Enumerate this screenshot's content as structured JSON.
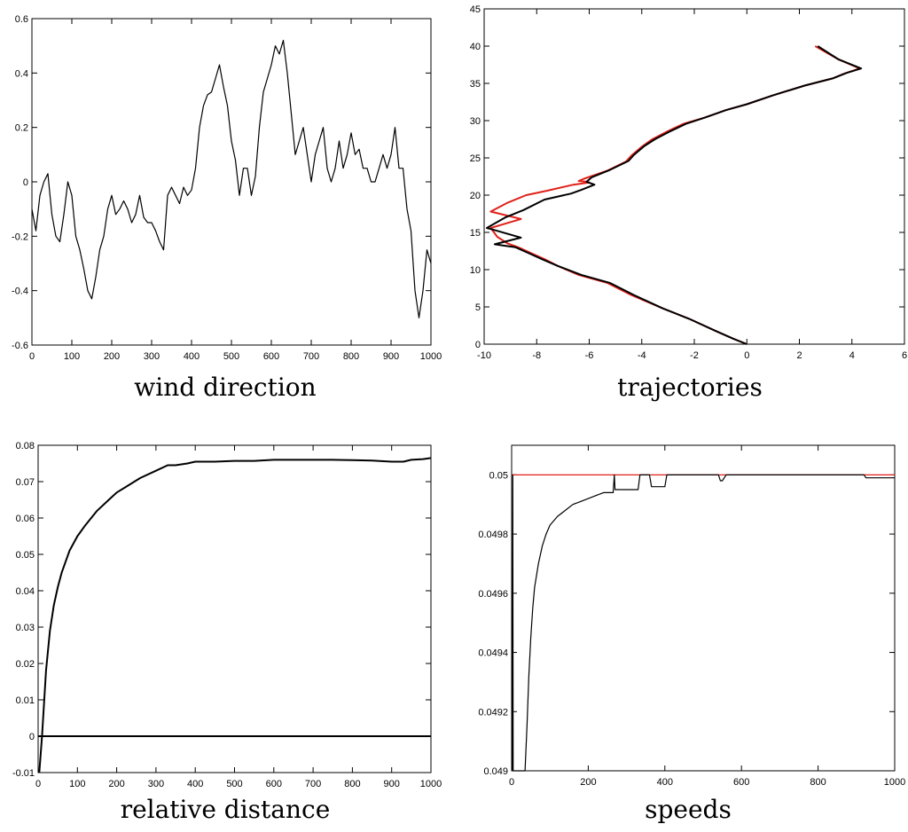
{
  "chart_data": [
    {
      "type": "line",
      "caption": "wind direction",
      "xlim": [
        0,
        1000
      ],
      "ylim": [
        -0.6,
        0.6
      ],
      "xticks": [
        "0",
        "100",
        "200",
        "300",
        "400",
        "500",
        "600",
        "700",
        "800",
        "900",
        "1000"
      ],
      "yticks": [
        "-0.6",
        "-0.4",
        "-0.2",
        "0",
        "0.2",
        "0.4",
        "0.6"
      ],
      "series": [
        {
          "color": "#000000",
          "x": [
            0,
            10,
            20,
            30,
            40,
            50,
            60,
            70,
            80,
            90,
            100,
            110,
            120,
            130,
            140,
            150,
            160,
            170,
            180,
            190,
            200,
            210,
            220,
            230,
            240,
            250,
            260,
            270,
            280,
            290,
            300,
            310,
            320,
            330,
            340,
            350,
            360,
            370,
            380,
            390,
            400,
            410,
            420,
            430,
            440,
            450,
            460,
            470,
            480,
            490,
            500,
            510,
            520,
            530,
            540,
            550,
            560,
            570,
            580,
            590,
            600,
            610,
            620,
            630,
            640,
            650,
            660,
            670,
            680,
            690,
            700,
            710,
            720,
            730,
            740,
            750,
            760,
            770,
            780,
            790,
            800,
            810,
            820,
            830,
            840,
            850,
            860,
            870,
            880,
            890,
            900,
            910,
            920,
            930,
            940,
            950,
            960,
            970,
            980,
            990,
            1000
          ],
          "y": [
            -0.1,
            -0.18,
            -0.05,
            0.0,
            0.03,
            -0.12,
            -0.2,
            -0.22,
            -0.12,
            0.0,
            -0.05,
            -0.2,
            -0.25,
            -0.32,
            -0.4,
            -0.43,
            -0.35,
            -0.25,
            -0.2,
            -0.1,
            -0.05,
            -0.12,
            -0.1,
            -0.07,
            -0.1,
            -0.15,
            -0.12,
            -0.05,
            -0.13,
            -0.15,
            -0.15,
            -0.18,
            -0.22,
            -0.25,
            -0.05,
            -0.02,
            -0.05,
            -0.08,
            -0.02,
            -0.05,
            -0.03,
            0.05,
            0.2,
            0.28,
            0.32,
            0.33,
            0.38,
            0.43,
            0.35,
            0.28,
            0.15,
            0.08,
            -0.05,
            0.05,
            0.05,
            -0.05,
            0.02,
            0.2,
            0.33,
            0.38,
            0.43,
            0.5,
            0.47,
            0.52,
            0.4,
            0.25,
            0.1,
            0.15,
            0.2,
            0.1,
            0.0,
            0.1,
            0.15,
            0.2,
            0.05,
            0.0,
            0.05,
            0.15,
            0.05,
            0.1,
            0.18,
            0.1,
            0.12,
            0.05,
            0.05,
            0.0,
            0.0,
            0.05,
            0.1,
            0.05,
            0.1,
            0.2,
            0.05,
            0.05,
            -0.1,
            -0.18,
            -0.4,
            -0.5,
            -0.4,
            -0.25,
            -0.3
          ]
        }
      ]
    },
    {
      "type": "line",
      "caption": "trajectories",
      "xlim": [
        -10,
        6
      ],
      "ylim": [
        0,
        45
      ],
      "xticks": [
        "-10",
        "-8",
        "-6",
        "-4",
        "-2",
        "0",
        "2",
        "4",
        "6"
      ],
      "yticks": [
        "0",
        "5",
        "10",
        "15",
        "20",
        "25",
        "30",
        "35",
        "40",
        "45"
      ],
      "series": [
        {
          "color": "#e0201a",
          "x": [
            0,
            -0.5,
            -1.2,
            -2.2,
            -3.2,
            -4.4,
            -5.3,
            -6.4,
            -7.2,
            -7.7,
            -8.2,
            -8.7,
            -9.1,
            -9.5,
            -9.75,
            -8.6,
            -9.75,
            -9.1,
            -8.4,
            -7.6,
            -6.6,
            -6.0,
            -6.1,
            -6.4,
            -6.2,
            -5.3,
            -4.6,
            -4.4,
            -4.0,
            -3.6,
            -3.0,
            -2.4,
            -1.6,
            -0.8,
            0.0,
            1.0,
            2.2,
            3.3,
            3.7,
            4.3,
            3.5,
            2.6
          ],
          "y": [
            0,
            0.7,
            1.8,
            3.4,
            4.8,
            6.6,
            8.2,
            9.3,
            10.5,
            11.4,
            12.2,
            13.0,
            13.5,
            14.4,
            15.6,
            16.8,
            17.8,
            19.0,
            20.0,
            20.6,
            21.4,
            21.7,
            21.8,
            21.9,
            22.2,
            23.3,
            24.5,
            25.3,
            26.5,
            27.5,
            28.6,
            29.6,
            30.4,
            31.4,
            32.2,
            33.4,
            34.7,
            35.7,
            36.3,
            37.0,
            38.2,
            40.0
          ]
        },
        {
          "color": "#000000",
          "x": [
            0,
            -0.5,
            -1.2,
            -2.2,
            -3.2,
            -4.3,
            -5.2,
            -6.3,
            -7.2,
            -7.8,
            -8.3,
            -8.8,
            -9.2,
            -9.6,
            -8.6,
            -9.7,
            -9.9,
            -9.2,
            -8.5,
            -7.7,
            -6.7,
            -6.3,
            -5.8,
            -6.1,
            -5.9,
            -5.2,
            -4.5,
            -4.3,
            -3.9,
            -3.5,
            -2.9,
            -2.3,
            -1.6,
            -0.8,
            0.0,
            1.0,
            2.2,
            3.3,
            3.8,
            4.35,
            3.5,
            2.7
          ],
          "y": [
            0,
            0.7,
            1.8,
            3.4,
            4.8,
            6.6,
            8.2,
            9.3,
            10.5,
            11.4,
            12.2,
            13.0,
            13.2,
            13.4,
            14.3,
            15.4,
            15.6,
            17.0,
            18.0,
            19.4,
            20.2,
            20.7,
            21.4,
            21.8,
            22.4,
            23.4,
            24.6,
            25.4,
            26.6,
            27.5,
            28.6,
            29.6,
            30.4,
            31.4,
            32.2,
            33.4,
            34.7,
            35.7,
            36.4,
            37.0,
            38.2,
            40.0
          ]
        }
      ]
    },
    {
      "type": "line",
      "caption": "relative distance",
      "xlim": [
        0,
        1000
      ],
      "ylim": [
        -0.01,
        0.08
      ],
      "xticks": [
        "0",
        "100",
        "200",
        "300",
        "400",
        "500",
        "600",
        "700",
        "800",
        "900",
        "1000"
      ],
      "yticks": [
        "-0.01",
        "0",
        "0.01",
        "0.02",
        "0.03",
        "0.04",
        "0.05",
        "0.06",
        "0.07",
        "0.08"
      ],
      "series": [
        {
          "color": "#000000",
          "x": [
            0,
            1000
          ],
          "y": [
            0,
            0
          ]
        },
        {
          "color": "#000000",
          "x": [
            3,
            10,
            20,
            30,
            40,
            50,
            60,
            80,
            100,
            120,
            150,
            180,
            200,
            230,
            260,
            300,
            330,
            350,
            380,
            400,
            450,
            500,
            550,
            600,
            650,
            700,
            750,
            800,
            850,
            900,
            930,
            950,
            980,
            1000
          ],
          "y": [
            -0.01,
            0.0,
            0.018,
            0.029,
            0.036,
            0.041,
            0.045,
            0.051,
            0.055,
            0.058,
            0.062,
            0.065,
            0.067,
            0.069,
            0.071,
            0.073,
            0.0745,
            0.0745,
            0.075,
            0.0755,
            0.0755,
            0.0757,
            0.0757,
            0.076,
            0.076,
            0.076,
            0.076,
            0.0759,
            0.0758,
            0.0755,
            0.0755,
            0.076,
            0.0762,
            0.0765
          ]
        }
      ]
    },
    {
      "type": "line",
      "caption": "speeds",
      "xlim": [
        0,
        1000
      ],
      "ylim": [
        0.049,
        0.0501
      ],
      "xticks": [
        "0",
        "200",
        "400",
        "600",
        "800",
        "1000"
      ],
      "yticks": [
        "0.049",
        "0.0492",
        "0.0494",
        "0.0496",
        "0.0498",
        "0.05"
      ],
      "series": [
        {
          "color": "#e0201a",
          "x": [
            0,
            1000
          ],
          "y": [
            0.05,
            0.05
          ]
        },
        {
          "color": "#000000",
          "x": [
            2,
            3,
            4,
            35,
            40,
            45,
            50,
            55,
            60,
            70,
            80,
            90,
            100,
            120,
            140,
            160,
            180,
            200,
            220,
            240,
            265,
            268,
            270,
            330,
            335,
            340,
            360,
            365,
            400,
            405,
            450,
            500,
            540,
            545,
            550,
            560,
            600,
            650,
            700,
            750,
            800,
            850,
            900,
            920,
            925,
            1000
          ],
          "y": [
            0.049,
            0.05,
            0.049,
            0.049,
            0.04915,
            0.04932,
            0.04945,
            0.04955,
            0.04962,
            0.0497,
            0.04976,
            0.0498,
            0.04983,
            0.04986,
            0.04988,
            0.0499,
            0.04991,
            0.04992,
            0.04993,
            0.04994,
            0.04994,
            0.05,
            0.04995,
            0.04995,
            0.05,
            0.05,
            0.05,
            0.04996,
            0.04996,
            0.05,
            0.05,
            0.05,
            0.05,
            0.04998,
            0.04998,
            0.05,
            0.05,
            0.05,
            0.05,
            0.05,
            0.05,
            0.05,
            0.05,
            0.05,
            0.04999,
            0.04999
          ]
        }
      ]
    }
  ]
}
